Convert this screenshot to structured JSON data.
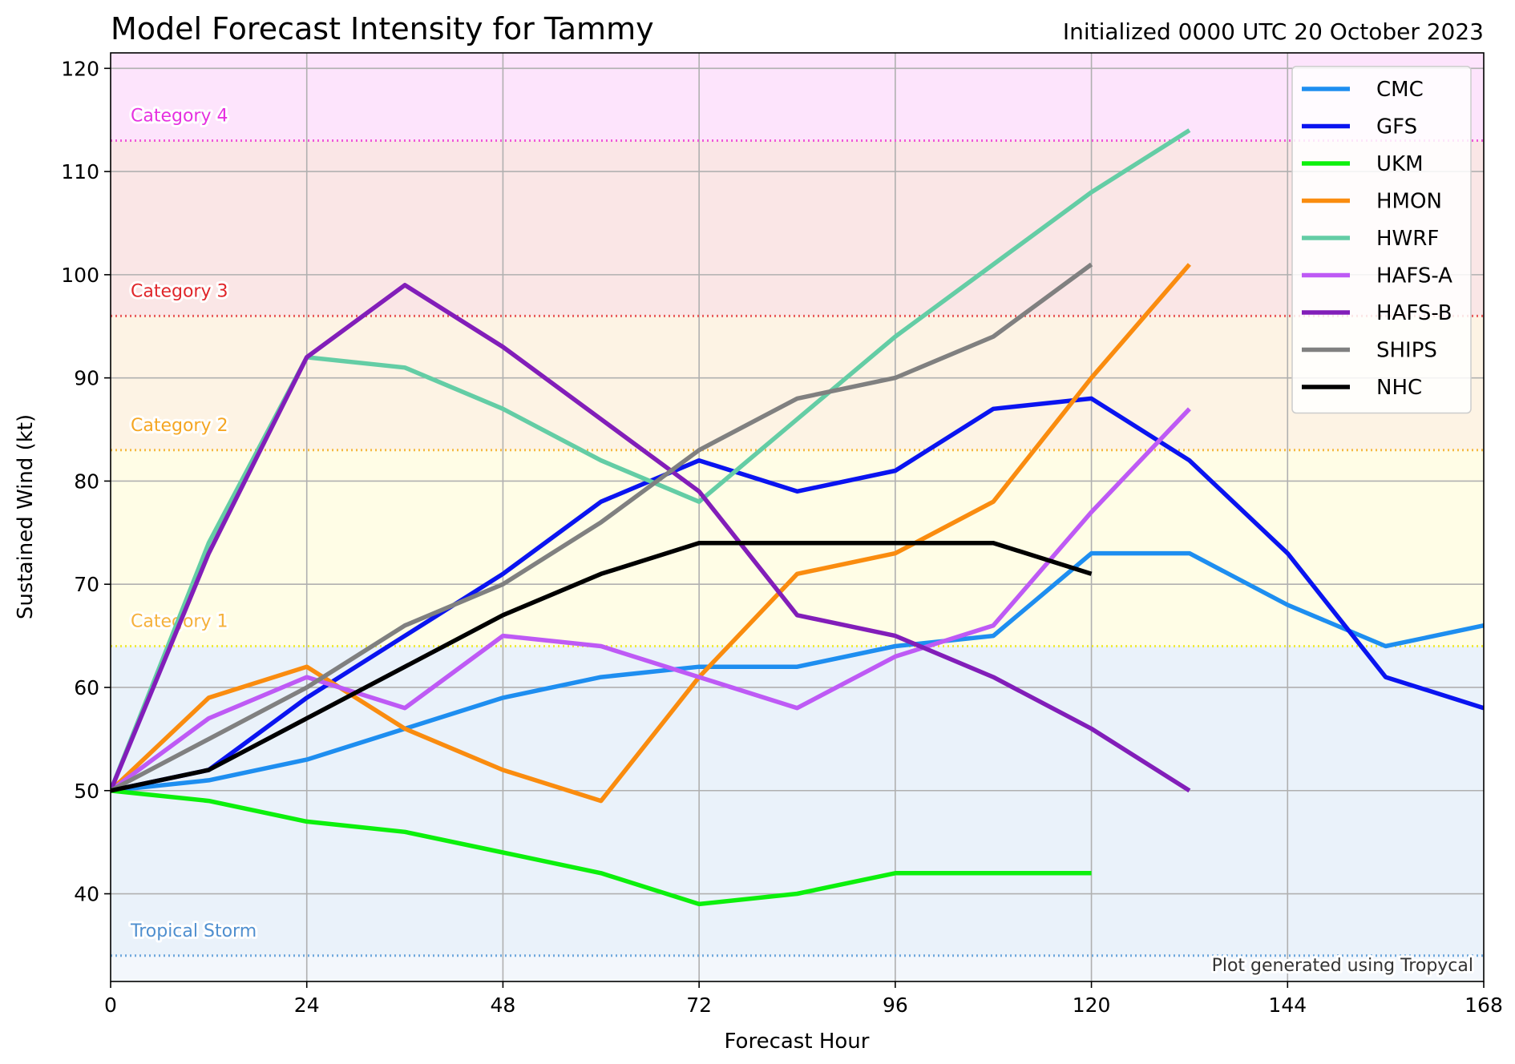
{
  "chart_data": {
    "type": "line",
    "title": "Model Forecast Intensity for Tammy",
    "subtitle": "Initialized 0000 UTC 20 October 2023",
    "xlabel": "Forecast Hour",
    "ylabel": "Sustained Wind (kt)",
    "xlim": [
      0,
      168
    ],
    "ylim": [
      31.5,
      121.5
    ],
    "xticks": [
      0,
      24,
      48,
      72,
      96,
      120,
      144,
      168
    ],
    "yticks": [
      40,
      50,
      60,
      70,
      80,
      90,
      100,
      110,
      120
    ],
    "grid": true,
    "legend_position": "top-right",
    "credit": "Plot generated using Tropycal",
    "bands": [
      {
        "label": "Tropical Storm",
        "min": 34,
        "max": 64,
        "fill": "#eaf2fa",
        "line_color": "#6fa8dc",
        "text_color": "#4f8fcf"
      },
      {
        "label": "Category 1",
        "min": 64,
        "max": 83,
        "fill": "#fffde6",
        "line_color": "#f0ea3c",
        "text_color": "#f5b13b"
      },
      {
        "label": "Category 2",
        "min": 83,
        "max": 96,
        "fill": "#fdf3e4",
        "line_color": "#f5b942",
        "text_color": "#f5a623"
      },
      {
        "label": "Category 3",
        "min": 96,
        "max": 113,
        "fill": "#fae6e6",
        "line_color": "#e85b5b",
        "text_color": "#e0262a"
      },
      {
        "label": "Category 4",
        "min": 113,
        "max": 137,
        "fill": "#fde4fc",
        "line_color": "#f05ad8",
        "text_color": "#e632e0"
      }
    ],
    "below_band_fill": "#f3f7fc",
    "series": [
      {
        "name": "CMC",
        "color": "#1e8ef0",
        "x": [
          0,
          12,
          24,
          36,
          48,
          60,
          72,
          84,
          96,
          108,
          120,
          132,
          144,
          156,
          168
        ],
        "y": [
          50,
          51,
          53,
          56,
          59,
          61,
          62,
          62,
          64,
          65,
          73,
          73,
          68,
          64,
          66
        ]
      },
      {
        "name": "GFS",
        "color": "#0a14f0",
        "x": [
          0,
          12,
          24,
          36,
          48,
          60,
          72,
          84,
          96,
          108,
          120,
          132,
          144,
          156,
          168
        ],
        "y": [
          50,
          52,
          59,
          65,
          71,
          78,
          82,
          79,
          81,
          87,
          88,
          82,
          73,
          61,
          58
        ]
      },
      {
        "name": "UKM",
        "color": "#0cf00c",
        "x": [
          0,
          12,
          24,
          36,
          48,
          60,
          72,
          84,
          96,
          108,
          120
        ],
        "y": [
          50,
          49,
          47,
          46,
          44,
          42,
          39,
          40,
          42,
          42,
          42
        ]
      },
      {
        "name": "HMON",
        "color": "#fa8c0f",
        "x": [
          0,
          12,
          24,
          36,
          48,
          60,
          72,
          84,
          96,
          108,
          120,
          132
        ],
        "y": [
          50,
          59,
          62,
          56,
          52,
          49,
          61,
          71,
          73,
          78,
          90,
          101
        ]
      },
      {
        "name": "HWRF",
        "color": "#64cda5",
        "x": [
          0,
          12,
          24,
          36,
          48,
          60,
          72,
          84,
          96,
          108,
          120,
          132
        ],
        "y": [
          50,
          74,
          92,
          91,
          87,
          82,
          78,
          86,
          94,
          101,
          108,
          114
        ]
      },
      {
        "name": "HAFS-A",
        "color": "#be5af5",
        "x": [
          0,
          12,
          24,
          36,
          48,
          60,
          72,
          84,
          96,
          108,
          120,
          132
        ],
        "y": [
          50,
          57,
          61,
          58,
          65,
          64,
          61,
          58,
          63,
          66,
          77,
          87
        ]
      },
      {
        "name": "HAFS-B",
        "color": "#821eb9",
        "x": [
          0,
          12,
          24,
          36,
          48,
          60,
          72,
          84,
          96,
          108,
          120,
          132
        ],
        "y": [
          50,
          73,
          92,
          99,
          93,
          86,
          79,
          67,
          65,
          61,
          56,
          50
        ]
      },
      {
        "name": "SHIPS",
        "color": "#808080",
        "x": [
          0,
          12,
          24,
          36,
          48,
          60,
          72,
          84,
          96,
          108,
          120
        ],
        "y": [
          50,
          55,
          60,
          66,
          70,
          76,
          83,
          88,
          90,
          94,
          101
        ]
      },
      {
        "name": "NHC",
        "color": "#000000",
        "x": [
          0,
          12,
          24,
          36,
          48,
          60,
          72,
          84,
          96,
          108,
          120
        ],
        "y": [
          50,
          52,
          57,
          62,
          67,
          71,
          74,
          74,
          74,
          74,
          71
        ]
      }
    ]
  }
}
